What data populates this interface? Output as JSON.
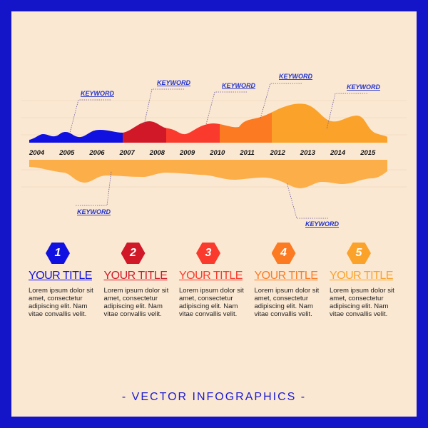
{
  "colors": {
    "frame": "#1414c8",
    "background": "#fbe8d2",
    "c1": "#1010e0",
    "c2": "#d01828",
    "c3": "#fa3a2c",
    "c4": "#fb7a22",
    "c5": "#fba22a",
    "bottom": "#fcae48"
  },
  "years": [
    "2004",
    "2005",
    "2006",
    "2007",
    "2008",
    "2009",
    "2010",
    "2011",
    "2012",
    "2013",
    "2014",
    "2015"
  ],
  "keywords_top": [
    "KEYWORD",
    "KEYWORD",
    "KEYWORD",
    "KEYWORD",
    "KEYWORD"
  ],
  "keywords_bottom": [
    "KEYWORD",
    "KEYWORD"
  ],
  "cards": [
    {
      "number": "1",
      "title": "YOUR TITLE",
      "text": "Lorem ipsum dolor sit amet, consectetur adipiscing elit. Nam vitae convallis velit."
    },
    {
      "number": "2",
      "title": "YOUR TITLE",
      "text": "Lorem ipsum dolor sit amet, consectetur adipiscing elit. Nam vitae convallis velit."
    },
    {
      "number": "3",
      "title": "YOUR TITLE",
      "text": "Lorem ipsum dolor sit amet, consectetur adipiscing elit. Nam vitae convallis velit."
    },
    {
      "number": "4",
      "title": "YOUR TITLE",
      "text": "Lorem ipsum dolor sit amet, consectetur adipiscing elit. Nam vitae convallis velit."
    },
    {
      "number": "5",
      "title": "YOUR TITLE",
      "text": "Lorem ipsum dolor sit amet, consectetur adipiscing elit. Nam vitae convallis velit."
    }
  ],
  "footer": "- VECTOR INFOGRAPHICS -"
}
